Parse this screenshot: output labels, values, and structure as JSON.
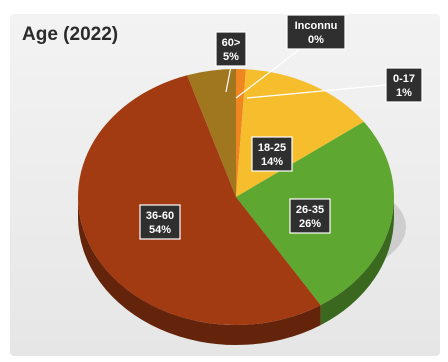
{
  "chart_data": {
    "type": "pie",
    "title": "Age (2022)",
    "slices": [
      {
        "category": "0-17",
        "value": 1,
        "label": "1%",
        "color": "#f0861f"
      },
      {
        "category": "18-25",
        "value": 14,
        "label": "14%",
        "color": "#f6be2d"
      },
      {
        "category": "26-35",
        "value": 26,
        "label": "26%",
        "color": "#5ea831"
      },
      {
        "category": "36-60",
        "value": 54,
        "label": "54%",
        "color": "#a23a12"
      },
      {
        "category": "60>",
        "value": 5,
        "label": "5%",
        "color": "#a0761e"
      },
      {
        "category": "Inconnu",
        "value": 0,
        "label": "0%",
        "color": "#ffcf6b"
      }
    ],
    "style": "3d"
  }
}
